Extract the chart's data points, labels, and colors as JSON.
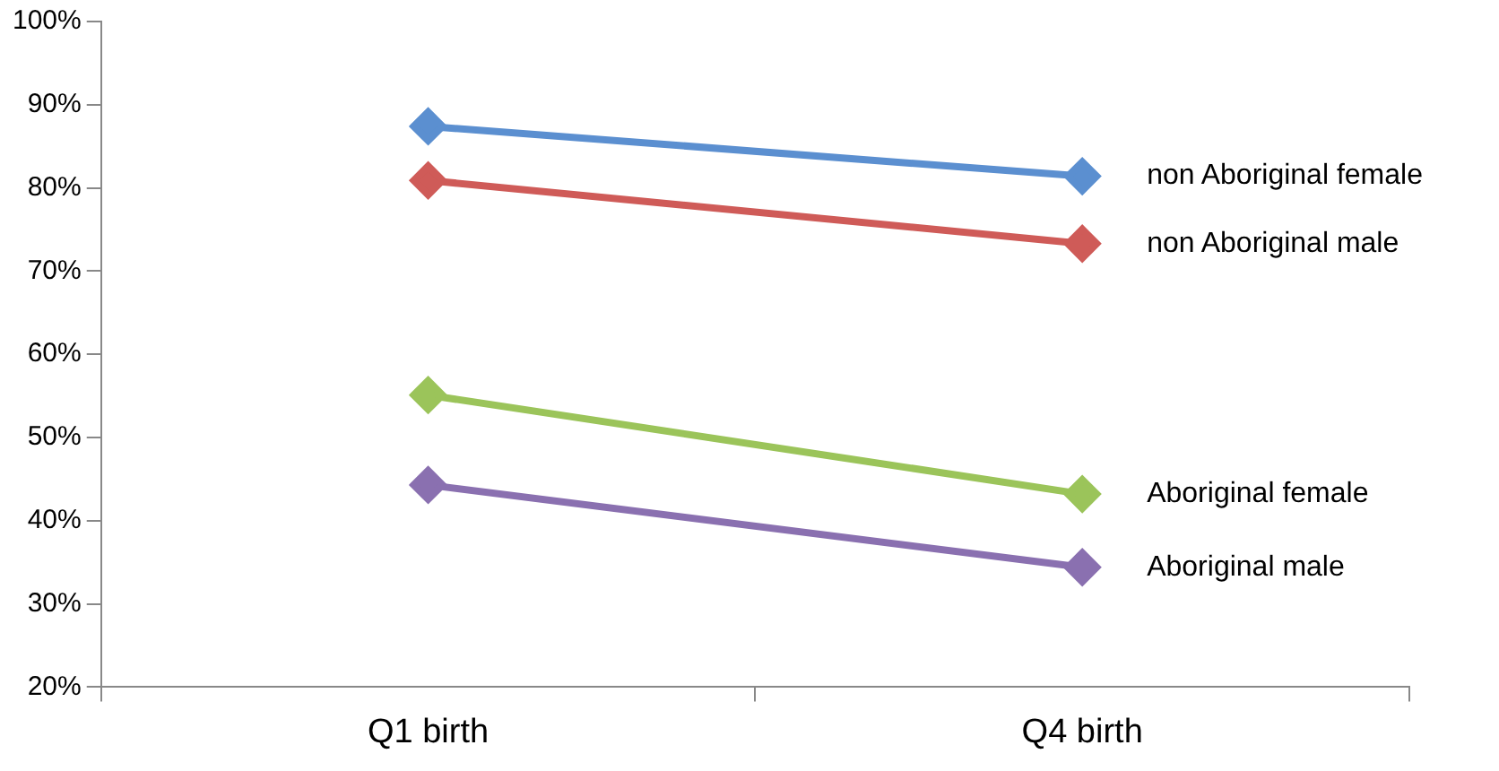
{
  "chart_data": {
    "type": "line",
    "categories": [
      "Q1 birth",
      "Q4 birth"
    ],
    "series": [
      {
        "name": "non Aboriginal female",
        "color": "#5b8fd0",
        "values": [
          87.4,
          81.4
        ]
      },
      {
        "name": "non Aboriginal male",
        "color": "#cf5b58",
        "values": [
          80.9,
          73.3
        ]
      },
      {
        "name": "Aboriginal female",
        "color": "#9bc45a",
        "values": [
          55.1,
          43.2
        ]
      },
      {
        "name": "Aboriginal male",
        "color": "#8a70b0",
        "values": [
          44.3,
          34.4
        ]
      }
    ],
    "ylim": [
      20,
      100
    ],
    "yticks": [
      {
        "value": 20,
        "label": "20%"
      },
      {
        "value": 30,
        "label": "30%"
      },
      {
        "value": 40,
        "label": "40%"
      },
      {
        "value": 50,
        "label": "50%"
      },
      {
        "value": 60,
        "label": "60%"
      },
      {
        "value": 70,
        "label": "70%"
      },
      {
        "value": 80,
        "label": "80%"
      },
      {
        "value": 90,
        "label": "90%"
      },
      {
        "value": 100,
        "label": "100%"
      }
    ],
    "grid": false,
    "marker": "diamond",
    "line_style": "solid"
  }
}
